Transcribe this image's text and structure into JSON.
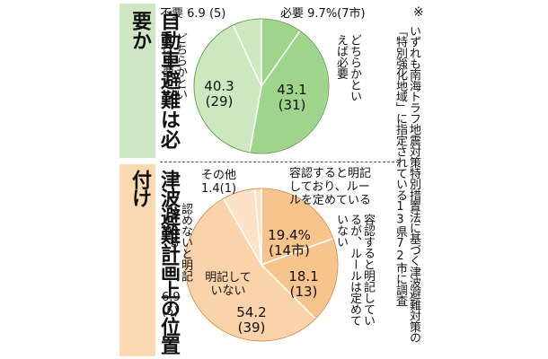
{
  "titles": {
    "top": "自動車避難は必要か",
    "bottom": "津波避難計画上の位置付け"
  },
  "note": {
    "mark": "※",
    "text": "いずれも南海トラフ地震対策特別措置法に基づく津波避難対策の「特別強化地域」に指定されている13県72市に調査"
  },
  "colors": {
    "top_title_bg": "#cfe6c4",
    "bottom_title_bg": "#fbd9b2",
    "green_dark": "#9fd48c",
    "green_mid": "#b7dfa8",
    "green_light": "#cde8c0",
    "orange_dark": "#f8c48d",
    "orange_mid": "#fad3aa",
    "orange_light": "#fce2c6"
  },
  "chart_data": [
    {
      "type": "pie",
      "title": "自動車避難は必要か",
      "start": "top",
      "direction": "clockwise",
      "slices": [
        {
          "label": "必要",
          "value": 9.7,
          "count": "7市",
          "color": "#9fd48c"
        },
        {
          "label": "どちらかといえば必要",
          "value": 43.1,
          "count": "31",
          "color": "#9fd48c"
        },
        {
          "label": "どちらかといえば不要",
          "value": 40.3,
          "count": "29",
          "color": "#cde8c0"
        },
        {
          "label": "不要",
          "value": 6.9,
          "count": "5",
          "color": "#cde8c0"
        }
      ],
      "text": {
        "hitsuyo": "必要",
        "hitsuyo_val": "9.7%(7市)",
        "fuyo": "不要",
        "fuyo_val": "6.9 (5)",
        "dochira_hitsuyo": "どちらかといえば必要",
        "dochira_hitsuyo_val": "43.1",
        "dochira_hitsuyo_cnt": "(31)",
        "dochira_fuyo": "どちらかといえば不要",
        "dochira_fuyo_val": "40.3",
        "dochira_fuyo_cnt": "(29)"
      }
    },
    {
      "type": "pie",
      "title": "津波避難計画上の位置付け",
      "start": "top",
      "direction": "clockwise",
      "slices": [
        {
          "label": "容認すると明記しており、ルールを定めている",
          "value": 19.4,
          "count": "14市",
          "color": "#f8c48d"
        },
        {
          "label": "容認すると明記しているが、ルールは定めていない",
          "value": 18.1,
          "count": "13",
          "color": "#f8c48d"
        },
        {
          "label": "明記していない",
          "value": 54.2,
          "count": "39",
          "color": "#fad3aa"
        },
        {
          "label": "認めないと明記している",
          "value": 6.9,
          "count": "5",
          "color": "#fce2c6"
        },
        {
          "label": "その他",
          "value": 1.4,
          "count": "1",
          "color": "#fce2c6"
        }
      ],
      "text": {
        "rule_label": "容認すると明記しており、ルールを定めている",
        "rule_val": "19.4%",
        "rule_cnt": "(14市)",
        "norule_label": "容認すると明記しているが、ルールは定めていない",
        "norule_val": "18.1",
        "norule_cnt": "(13)",
        "none_label": "明記していない",
        "none_val": "54.2",
        "none_cnt": "(39)",
        "deny_label": "認めないと明記している",
        "deny_val": "6.9",
        "deny_cnt": "(5)",
        "other_label": "その他",
        "other_val": "1.4(1)"
      }
    }
  ]
}
